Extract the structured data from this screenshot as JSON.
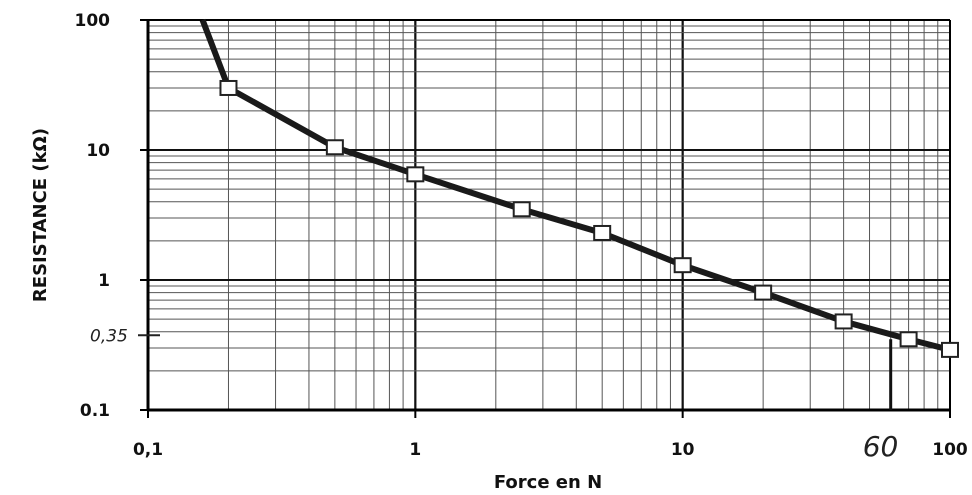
{
  "chart_data": {
    "type": "line",
    "xlabel": "Force en N",
    "ylabel": "RESISTANCE (kΩ)",
    "x_scale": "log",
    "y_scale": "log",
    "xlim": [
      0.1,
      100
    ],
    "ylim": [
      0.1,
      100
    ],
    "grid": true,
    "x_ticks": [
      {
        "value": 0.1,
        "label": "0,1"
      },
      {
        "value": 1,
        "label": "1"
      },
      {
        "value": 10,
        "label": "10"
      },
      {
        "value": 100,
        "label": "100"
      }
    ],
    "y_ticks": [
      {
        "value": 0.1,
        "label": "0.1"
      },
      {
        "value": 1,
        "label": "1"
      },
      {
        "value": 10,
        "label": "10"
      },
      {
        "value": 100,
        "label": "100"
      }
    ],
    "series": [
      {
        "x": [
          0.2,
          0.5,
          1.0,
          2.5,
          5.0,
          10.0,
          20.0,
          40.0,
          70.0,
          100.0
        ],
        "y": [
          30.0,
          10.5,
          6.5,
          3.5,
          2.3,
          1.3,
          0.8,
          0.48,
          0.35,
          0.29
        ],
        "curve_start": {
          "x": 0.16,
          "y": 100
        }
      }
    ],
    "annotations": [
      {
        "text": "0,35",
        "axis": "y",
        "value": 0.35
      },
      {
        "text": "60",
        "axis": "x",
        "value": 60
      }
    ],
    "colors": {
      "line": "#1a1a1a",
      "marker_fill": "#ffffff",
      "grid": "#555555"
    }
  }
}
